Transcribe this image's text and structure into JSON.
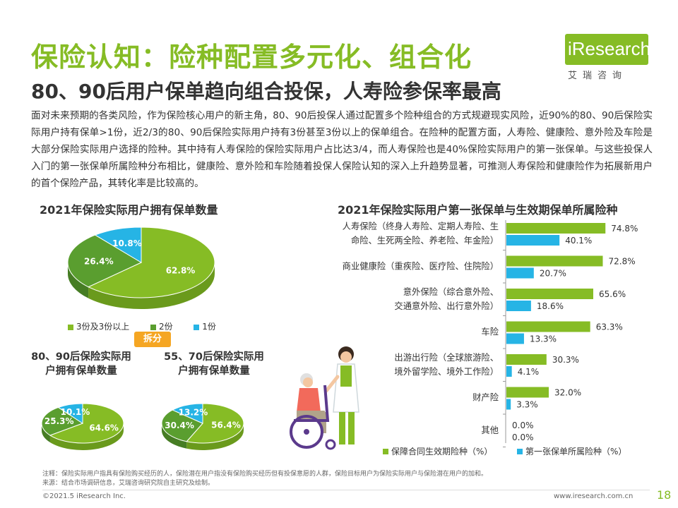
{
  "title": "保险认知：险种配置多元化、组合化",
  "subtitle": "80、90后用户保单趋向组合投保，人寿险参保率最高",
  "logo": {
    "text": "iResearch",
    "sub": "艾瑞咨询"
  },
  "intro": "面对未来预期的各类风险，作为保险核心用户的新主角，80、90后投保人通过配置多个险种组合的方式规避现实风险，近90%的80、90后保险实际用户持有保单>1份，近2/3的80、90后保险实际用户持有3份甚至3份以上的保单组合。在险种的配置方面，人寿险、健康险、意外险及车险是大部分保险实际用户选择的险种。其中持有人寿保险的保险实际用户占比达3/4，而人寿保险也是40%保险实际用户的第一张保单。与这些投保人入门的第一张保单所属险种分布相比，健康险、意外险和车险随着投保人保险认知的深入上升趋势显著，可推测人寿保险和健康险作为拓展新用户的首个保险产品，其转化率是比较高的。",
  "split_label": "拆分",
  "colors": {
    "green": "#86bc25",
    "dark_green": "#5a9e2f",
    "blue": "#26b4e5",
    "orange": "#f5a623"
  },
  "chart_data": [
    {
      "type": "pie",
      "title": "2021年保险实际用户拥有保单数量",
      "categories": [
        "3份及3份以上",
        "2份",
        "1份"
      ],
      "values": [
        62.8,
        26.4,
        10.8
      ],
      "value_labels": [
        "62.8%",
        "26.4%",
        "10.8%"
      ],
      "legend": "bottom"
    },
    {
      "type": "pie",
      "title": "80、90后保险实际用户拥有保单数量",
      "categories": [
        "3份及3份以上",
        "2份",
        "1份"
      ],
      "values": [
        64.6,
        25.3,
        10.1
      ],
      "value_labels": [
        "64.6%",
        "25.3%",
        "10.1%"
      ]
    },
    {
      "type": "pie",
      "title": "55、70后保险实际用户拥有保单数量",
      "categories": [
        "3份及3份以上",
        "2份",
        "1份"
      ],
      "values": [
        56.4,
        30.4,
        13.2
      ],
      "value_labels": [
        "56.4%",
        "30.4%",
        "13.2%"
      ]
    },
    {
      "type": "bar",
      "orientation": "horizontal",
      "title": "2021年保险实际用户第一张保单与生效期保单所属险种",
      "categories": [
        [
          "人寿保险（终身人寿险、定期人寿险、生",
          "命险、生死两全险、养老险、年金险）"
        ],
        [
          "商业健康险（重疾险、医疗险、住院险）"
        ],
        [
          "意外保险（综合意外险、",
          "交通意外险、出行意外险）"
        ],
        [
          "车险"
        ],
        [
          "出游出行险（全球旅游险、",
          "境外留学险、境外工作险）"
        ],
        [
          "财产险"
        ],
        [
          "其他"
        ]
      ],
      "series": [
        {
          "name": "保障合同生效期险种（%）",
          "values": [
            74.8,
            72.8,
            65.6,
            63.3,
            30.3,
            32.0,
            0.0
          ],
          "labels": [
            "74.8%",
            "72.8%",
            "65.6%",
            "63.3%",
            "30.3%",
            "32.0%",
            "0.0%"
          ]
        },
        {
          "name": "第一张保单所属险种（%）",
          "values": [
            40.1,
            20.7,
            18.6,
            13.3,
            4.1,
            3.3,
            0.0
          ],
          "labels": [
            "40.1%",
            "20.7%",
            "18.6%",
            "13.3%",
            "4.1%",
            "3.3%",
            "0.0%"
          ]
        }
      ],
      "legend": "bottom"
    }
  ],
  "note": "注释：保险实际用户指具有保险购买经历的人，保险潜在用户指没有保险购买经历但有投保意愿的人群，保险目标用户为保险实际用户与保险潜在用户的加和。",
  "source": "来源：结合市场调研信息，艾瑞咨询研究院自主研究及绘制。",
  "footer": {
    "copyright": "©2021.5 iResearch Inc.",
    "url": "www.iresearch.com.cn",
    "page": "18"
  }
}
